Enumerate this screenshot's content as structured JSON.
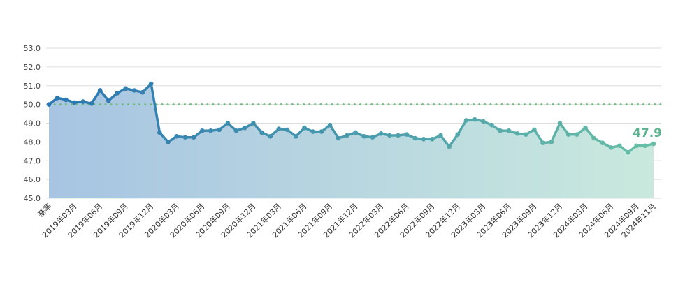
{
  "chart_data": {
    "type": "line",
    "title": "",
    "xlabel": "",
    "ylabel": "",
    "ylim": [
      45,
      53
    ],
    "yticks": [
      "45.0",
      "46.0",
      "47.0",
      "48.0",
      "49.0",
      "50.0",
      "51.0",
      "52.0",
      "53.0"
    ],
    "grid": true,
    "reference_line": 50.0,
    "last_value_label": "47.9",
    "x": [
      "基準",
      "2019年01月",
      "2019年02月",
      "2019年03月",
      "2019年04月",
      "2019年05月",
      "2019年06月",
      "2019年07月",
      "2019年08月",
      "2019年09月",
      "2019年10月",
      "2019年11月",
      "2019年12月",
      "2020年01月",
      "2020年02月",
      "2020年03月",
      "2020年04月",
      "2020年05月",
      "2020年06月",
      "2020年07月",
      "2020年08月",
      "2020年09月",
      "2020年10月",
      "2020年11月",
      "2020年12月",
      "2021年01月",
      "2021年02月",
      "2021年03月",
      "2021年04月",
      "2021年05月",
      "2021年06月",
      "2021年07月",
      "2021年08月",
      "2021年09月",
      "2021年10月",
      "2021年11月",
      "2021年12月",
      "2022年01月",
      "2022年02月",
      "2022年03月",
      "2022年04月",
      "2022年05月",
      "2022年06月",
      "2022年07月",
      "2022年08月",
      "2022年09月",
      "2022年10月",
      "2022年11月",
      "2022年12月",
      "2023年01月",
      "2023年02月",
      "2023年03月",
      "2023年04月",
      "2023年05月",
      "2023年06月",
      "2023年07月",
      "2023年08月",
      "2023年09月",
      "2023年10月",
      "2023年11月",
      "2023年12月",
      "2024年01月",
      "2024年02月",
      "2024年03月",
      "2024年04月",
      "2024年05月",
      "2024年06月",
      "2024年07月",
      "2024年08月",
      "2024年09月",
      "2024年10月",
      "2024年11月"
    ],
    "xtick_labels": [
      "基準",
      "2019年03月",
      "2019年06月",
      "2019年09月",
      "2019年12月",
      "2020年03月",
      "2020年06月",
      "2020年09月",
      "2020年12月",
      "2021年03月",
      "2021年06月",
      "2021年09月",
      "2021年12月",
      "2022年03月",
      "2022年06月",
      "2022年09月",
      "2022年12月",
      "2023年03月",
      "2023年06月",
      "2023年09月",
      "2023年12月",
      "2024年03月",
      "2024年06月",
      "2024年09月",
      "2024年11月"
    ],
    "values": [
      50.0,
      50.35,
      50.25,
      50.1,
      50.15,
      50.05,
      50.75,
      50.2,
      50.6,
      50.85,
      50.75,
      50.65,
      51.1,
      48.5,
      48.0,
      48.3,
      48.25,
      48.25,
      48.6,
      48.6,
      48.65,
      49.0,
      48.6,
      48.75,
      49.0,
      48.5,
      48.3,
      48.7,
      48.65,
      48.3,
      48.75,
      48.55,
      48.55,
      48.9,
      48.2,
      48.35,
      48.5,
      48.3,
      48.25,
      48.45,
      48.35,
      48.35,
      48.4,
      48.2,
      48.15,
      48.15,
      48.35,
      47.75,
      48.4,
      49.15,
      49.2,
      49.1,
      48.9,
      48.6,
      48.6,
      48.45,
      48.4,
      48.65,
      47.95,
      48.0,
      49.0,
      48.4,
      48.4,
      48.75,
      48.2,
      47.95,
      47.7,
      47.8,
      47.45,
      47.8,
      47.8,
      47.9
    ],
    "colors": {
      "line_start": "#2a76b4",
      "line_end": "#68bfa6",
      "fill_start": "#a7c4e2",
      "fill_end": "#c9e9de",
      "reference": "#6fbb7e",
      "label": "#5db38f",
      "grid": "#dddddd"
    }
  }
}
